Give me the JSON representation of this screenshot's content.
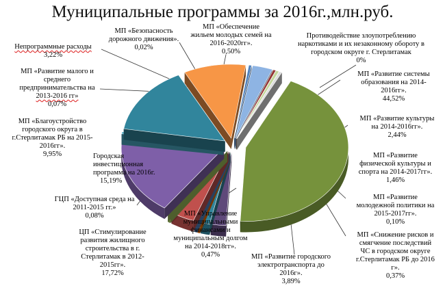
{
  "chart_data": {
    "type": "pie",
    "style": "3d-exploded",
    "title": "Муниципальные программы за 2016г.,млн.руб.",
    "slices": [
      {
        "name": "МП «Развитие системы образования на 2014-2016гг».",
        "value": "44,52%",
        "percent": 44.52,
        "color": "#76923c"
      },
      {
        "name": "МП «Развитие культуры на 2014-2016гг».",
        "value": "2,44%",
        "percent": 2.44,
        "color": "#5f497a"
      },
      {
        "name": "МП «Развитие физической культуры и спорта на 2014-2017гг».",
        "value": "1,46%",
        "percent": 1.46,
        "color": "#31859c"
      },
      {
        "name": "МП «Развитие молодежной политики на 2015-2017гг».",
        "value": "0,10%",
        "percent": 0.1,
        "color": "#e36c09"
      },
      {
        "name": "МП «Снижение рисков и смягчение последствий ЧС в городском округе г.Стерлитамак РБ до 2016 г».",
        "value": "0,37%",
        "percent": 0.37,
        "color": "#4f81bd"
      },
      {
        "name": "МП «Развитие городского электротранспорта до 2016г».",
        "value": "3,89%",
        "percent": 3.89,
        "color": "#c0504d"
      },
      {
        "name": "МП «Управление муниципальными финансами и муниципальным долгом на 2014-2018гг».",
        "value": "0,47%",
        "percent": 0.47,
        "color": "#9bbb59"
      },
      {
        "name": "ЦП «Стимулирование развития жилищного строительства в г. Стерлитамак в 2012-2015гг».",
        "value": "17,72%",
        "percent": 17.72,
        "color": "#7e5fa8"
      },
      {
        "name": "ГЦП «Доступная среда на 2011-2015 гг.»",
        "value": "0,08%",
        "percent": 0.08,
        "color": "#4bacc6"
      },
      {
        "name": "Городская инвестиционная программа на 2016г.",
        "value": "15,19%",
        "percent": 15.19,
        "color": "#31859c"
      },
      {
        "name": "МП «Благоустройство городского округа в г.Стерлитамак РБ на 2015-2016гг».",
        "value": "9,95%",
        "percent": 9.95,
        "color": "#f79646"
      },
      {
        "name": "МП «Развитие малого и среднего предпринимательства на 2013-2016 гг»",
        "value": "0,07%",
        "percent": 0.07,
        "color": "#4f81bd"
      },
      {
        "name": "Непрограммные расходы",
        "value": "3,22%",
        "percent": 3.22,
        "color": "#8eb4e3"
      },
      {
        "name": "МП «Безопасность дорожного движения».",
        "value": "0,02%",
        "percent": 0.02,
        "color": "#953735"
      },
      {
        "name": "МП «Обеспечение жильем молодых семей на 2016-2020гг».",
        "value": "0,50%",
        "percent": 0.5,
        "color": "#c3d69b"
      },
      {
        "name": "Противодействие злоупотреблению наркотиками и их незаконному обороту в городском округе г. Стерлитамак",
        "value": "0%",
        "percent": 0,
        "color": "#dddddd"
      }
    ]
  },
  "labels": {
    "education": {
      "lines": [
        "МП «Развитие системы",
        "образования на 2014-",
        "2016гг»."
      ],
      "value": "44,52%"
    },
    "culture": {
      "lines": [
        "МП «Развитие культуры",
        "на 2014-2016гг»."
      ],
      "value": "2,44%"
    },
    "sport": {
      "lines": [
        "МП «Развитие",
        "физической культуры и",
        "спорта на  2014-2017гг»."
      ],
      "value": "1,46%"
    },
    "youth": {
      "lines": [
        "МП «Развитие",
        "молодежной политики на",
        "2015-2017гг»."
      ],
      "value": "0,10%"
    },
    "emergency": {
      "lines": [
        "МП «Снижение рисков и",
        "смягчение последствий",
        "ЧС в городском округе",
        "г.Стерлитамак РБ до 2016",
        "г»."
      ],
      "value": "0,37%"
    },
    "transport": {
      "lines": [
        "МП «Развитие городского",
        "электротранспорта до",
        "2016г»."
      ],
      "value": "3,89%"
    },
    "finance": {
      "lines": [
        "МП «Управление",
        "муниципальными",
        "финансами и",
        "муниципальным долгом",
        "на 2014-2018гг»."
      ],
      "value": "0,47%"
    },
    "housing": {
      "lines": [
        "ЦП «Стимулирование",
        "развития жилищного",
        "строительства в г.",
        "Стерлитамак в 2012-",
        "2015гг»."
      ],
      "value": "17,72%"
    },
    "access": {
      "lines": [
        "ГЦП «Доступная среда на",
        "2011-2015 гг.»"
      ],
      "value": "0,08%"
    },
    "invest": {
      "lines": [
        "Городская",
        "инвестиционная",
        "программа на 2016г."
      ],
      "value": "15,19%"
    },
    "improvement": {
      "lines": [
        "МП «Благоустройство",
        "городского округа в",
        "г.Стерлитамак РБ на 2015-",
        "2016гг»."
      ],
      "value": "9,95%"
    },
    "business": {
      "lines": [
        "МП «Развитие малого и",
        "среднего",
        "предпринимательства на",
        "2013-2016 гг»"
      ],
      "value": "0,07%"
    },
    "nonprogram": {
      "lines": [
        "Непрограммные расходы"
      ],
      "value": "3,22%"
    },
    "road": {
      "lines": [
        "МП «Безопасность",
        "дорожного движения»."
      ],
      "value": "0,02%"
    },
    "young_families": {
      "lines": [
        "МП «Обеспечение",
        "жильем молодых семей на",
        "2016-2020гг»."
      ],
      "value": "0,50%"
    },
    "drugs": {
      "lines": [
        "Противодействие злоупотреблению",
        "наркотиками и их незаконному обороту в",
        "городском округе г. Стерлитамак"
      ],
      "value": "0%"
    }
  }
}
